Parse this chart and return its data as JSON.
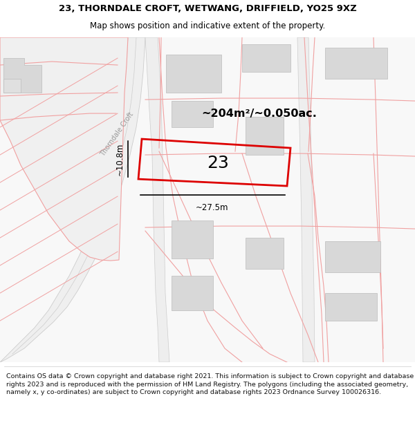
{
  "title_line1": "23, THORNDALE CROFT, WETWANG, DRIFFIELD, YO25 9XZ",
  "title_line2": "Map shows position and indicative extent of the property.",
  "footer_text": "Contains OS data © Crown copyright and database right 2021. This information is subject to Crown copyright and database rights 2023 and is reproduced with the permission of HM Land Registry. The polygons (including the associated geometry, namely x, y co-ordinates) are subject to Crown copyright and database rights 2023 Ordnance Survey 100026316.",
  "area_label": "~204m²/~0.050ac.",
  "number_label": "23",
  "width_label": "~27.5m",
  "height_label": "~10.8m",
  "road_label": "Thorndale Croft",
  "bg_color": "#ffffff",
  "map_bg": "#f8f8f8",
  "plot_color": "#dd0000",
  "building_color": "#d8d8d8",
  "building_edge": "#bbbbbb",
  "road_fill": "#ebebeb",
  "boundary_color": "#f0a0a0",
  "title_fs": 9.5,
  "subtitle_fs": 8.5,
  "footer_fs": 6.8
}
